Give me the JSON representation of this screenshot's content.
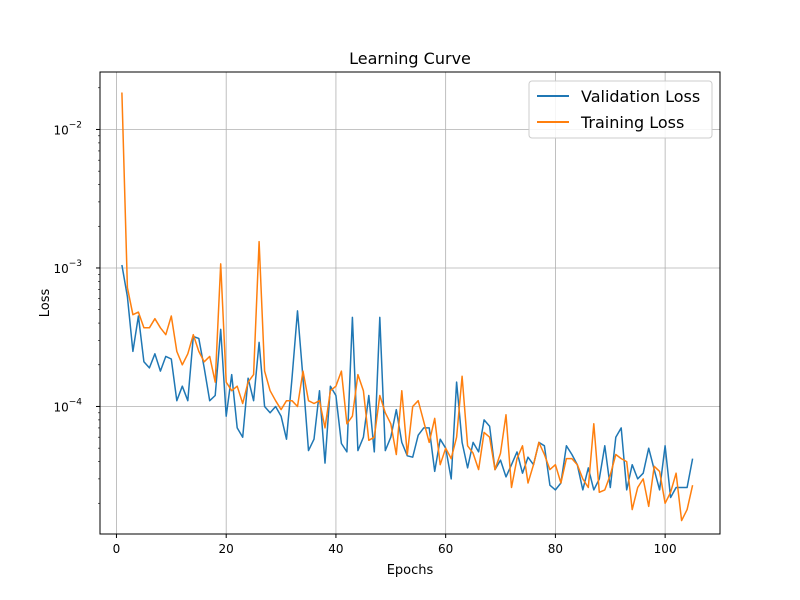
{
  "chart_data": {
    "type": "line",
    "title": "Learning Curve",
    "xlabel": "Epochs",
    "ylabel": "Loss",
    "yscale": "log",
    "xlim": [
      -3,
      110
    ],
    "ylim": [
      1.2e-05,
      0.026
    ],
    "xticks": [
      0,
      20,
      40,
      60,
      80,
      100
    ],
    "yticks": [
      {
        "value": 0.0001,
        "base": "10",
        "exp": "−4"
      },
      {
        "value": 0.001,
        "base": "10",
        "exp": "−3"
      },
      {
        "value": 0.01,
        "base": "10",
        "exp": "−2"
      }
    ],
    "grid": true,
    "legend_position": "top-right",
    "series": [
      {
        "name": "Validation Loss",
        "color": "#1f77b4",
        "x": [
          1,
          2,
          3,
          4,
          5,
          6,
          7,
          8,
          9,
          10,
          11,
          12,
          13,
          14,
          15,
          16,
          17,
          18,
          19,
          20,
          21,
          22,
          23,
          24,
          25,
          26,
          27,
          28,
          29,
          30,
          31,
          32,
          33,
          34,
          35,
          36,
          37,
          38,
          39,
          40,
          41,
          42,
          43,
          44,
          45,
          46,
          47,
          48,
          49,
          50,
          51,
          52,
          53,
          54,
          55,
          56,
          57,
          58,
          59,
          60,
          61,
          62,
          63,
          64,
          65,
          66,
          67,
          68,
          69,
          70,
          71,
          72,
          73,
          74,
          75,
          76,
          77,
          78,
          79,
          80,
          81,
          82,
          83,
          84,
          85,
          86,
          87,
          88,
          89,
          90,
          91,
          92,
          93,
          94,
          95,
          96,
          97,
          98,
          99,
          100,
          101,
          102,
          103,
          104,
          105
        ],
        "values": [
          0.00105,
          0.00062,
          0.00025,
          0.00045,
          0.00021,
          0.00019,
          0.00024,
          0.00018,
          0.00023,
          0.00022,
          0.00011,
          0.00014,
          0.00011,
          0.00032,
          0.00031,
          0.00019,
          0.00011,
          0.00012,
          0.00036,
          8.5e-05,
          0.00017,
          7e-05,
          6e-05,
          0.00016,
          0.00011,
          0.00029,
          0.0001,
          9e-05,
          0.0001,
          8.5e-05,
          5.8e-05,
          0.00016,
          0.00049,
          0.00016,
          4.8e-05,
          5.8e-05,
          0.00013,
          3.9e-05,
          0.00014,
          0.00012,
          5.4e-05,
          4.7e-05,
          0.00044,
          4.8e-05,
          6e-05,
          0.00012,
          4.7e-05,
          0.00044,
          4.8e-05,
          6e-05,
          9.5e-05,
          5.5e-05,
          4.4e-05,
          4.3e-05,
          6.2e-05,
          7e-05,
          7e-05,
          3.4e-05,
          5.8e-05,
          5e-05,
          3e-05,
          0.00015,
          5.5e-05,
          3.6e-05,
          5.5e-05,
          4.7e-05,
          8e-05,
          7.2e-05,
          3.5e-05,
          4.1e-05,
          3.1e-05,
          3.8e-05,
          4.7e-05,
          3.3e-05,
          4.3e-05,
          3.8e-05,
          5.5e-05,
          5.2e-05,
          2.7e-05,
          2.5e-05,
          2.8e-05,
          5.2e-05,
          4.5e-05,
          3.8e-05,
          2.5e-05,
          3.6e-05,
          2.5e-05,
          3e-05,
          5.2e-05,
          2.6e-05,
          6e-05,
          7e-05,
          2.5e-05,
          3.8e-05,
          3e-05,
          3.3e-05,
          5e-05,
          3.5e-05,
          2.5e-05,
          5.2e-05,
          2.2e-05,
          2.6e-05,
          2.6e-05,
          2.6e-05,
          4.2e-05
        ]
      },
      {
        "name": "Training Loss",
        "color": "#ff7f0e",
        "x": [
          1,
          2,
          3,
          4,
          5,
          6,
          7,
          8,
          9,
          10,
          11,
          12,
          13,
          14,
          15,
          16,
          17,
          18,
          19,
          20,
          21,
          22,
          23,
          24,
          25,
          26,
          27,
          28,
          29,
          30,
          31,
          32,
          33,
          34,
          35,
          36,
          37,
          38,
          39,
          40,
          41,
          42,
          43,
          44,
          45,
          46,
          47,
          48,
          49,
          50,
          51,
          52,
          53,
          54,
          55,
          56,
          57,
          58,
          59,
          60,
          61,
          62,
          63,
          64,
          65,
          66,
          67,
          68,
          69,
          70,
          71,
          72,
          73,
          74,
          75,
          76,
          77,
          78,
          79,
          80,
          81,
          82,
          83,
          84,
          85,
          86,
          87,
          88,
          89,
          90,
          91,
          92,
          93,
          94,
          95,
          96,
          97,
          98,
          99,
          100,
          101,
          102,
          103,
          104,
          105
        ],
        "values": [
          0.0185,
          0.00072,
          0.00046,
          0.00048,
          0.00037,
          0.00037,
          0.00043,
          0.00037,
          0.00033,
          0.00045,
          0.00025,
          0.0002,
          0.00024,
          0.00033,
          0.00025,
          0.00021,
          0.00023,
          0.00015,
          0.00107,
          0.00015,
          0.00013,
          0.00014,
          0.000105,
          0.00015,
          0.00017,
          0.00155,
          0.00018,
          0.00013,
          0.00011,
          9.5e-05,
          0.00011,
          0.00011,
          0.0001,
          0.00018,
          0.00011,
          0.000105,
          0.00011,
          7e-05,
          0.00013,
          0.00014,
          0.00018,
          7.5e-05,
          8.5e-05,
          0.00017,
          0.00013,
          5.7e-05,
          6e-05,
          0.00012,
          9e-05,
          7.5e-05,
          4.5e-05,
          0.00013,
          4.5e-05,
          0.0001,
          0.00011,
          7.8e-05,
          5.5e-05,
          8.2e-05,
          3.8e-05,
          5e-05,
          4.2e-05,
          6e-05,
          0.000165,
          5.2e-05,
          4.6e-05,
          3.5e-05,
          6.5e-05,
          6e-05,
          3.5e-05,
          4.6e-05,
          8.7e-05,
          2.6e-05,
          4.2e-05,
          5.2e-05,
          2.8e-05,
          3.8e-05,
          5.5e-05,
          4.5e-05,
          3.5e-05,
          3.8e-05,
          2.8e-05,
          4.2e-05,
          4.2e-05,
          3.8e-05,
          3e-05,
          2.6e-05,
          7.5e-05,
          2.4e-05,
          2.5e-05,
          3.2e-05,
          4.5e-05,
          4.2e-05,
          4e-05,
          1.8e-05,
          2.6e-05,
          3e-05,
          1.9e-05,
          3.7e-05,
          3.4e-05,
          2e-05,
          2.4e-05,
          3.3e-05,
          1.5e-05,
          1.8e-05,
          2.7e-05
        ]
      }
    ]
  }
}
